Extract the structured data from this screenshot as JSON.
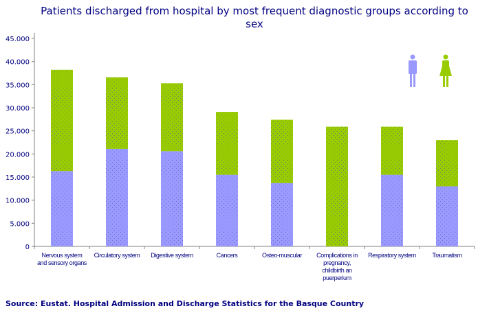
{
  "chart_data": {
    "type": "bar",
    "stacked": true,
    "title": "Patients discharged from hospital by most frequent diagnostic groups according to sex",
    "categories": [
      [
        "Nervous system",
        "and sensory organs"
      ],
      [
        "Circulatory system"
      ],
      [
        "Digestive system"
      ],
      [
        "Cancers"
      ],
      [
        "Osteo-muscular"
      ],
      [
        "Complications in",
        "pregnancy,",
        "childbirth an",
        "puerperium"
      ],
      [
        "Respiratory system"
      ],
      [
        "Traumatism"
      ]
    ],
    "series": [
      {
        "legend_icon": "male-icon",
        "color": "#9999ff",
        "values": [
          16300,
          21100,
          20600,
          15500,
          13700,
          0,
          15500,
          13000
        ]
      },
      {
        "legend_icon": "female-icon",
        "color": "#99cc00",
        "values": [
          21900,
          15500,
          14700,
          13600,
          13700,
          25900,
          10400,
          10000
        ]
      }
    ],
    "yticks": [
      "0",
      "5.000",
      "10.000",
      "15.000",
      "20.000",
      "25.000",
      "30.000",
      "35.000",
      "40.000",
      "45.000"
    ],
    "ylim": [
      0,
      45000
    ],
    "grid": false,
    "legend": "top-right (pictograms)"
  },
  "source": "Source: Eustat. Hospital Admission and Discharge Statistics for the Basque Country"
}
